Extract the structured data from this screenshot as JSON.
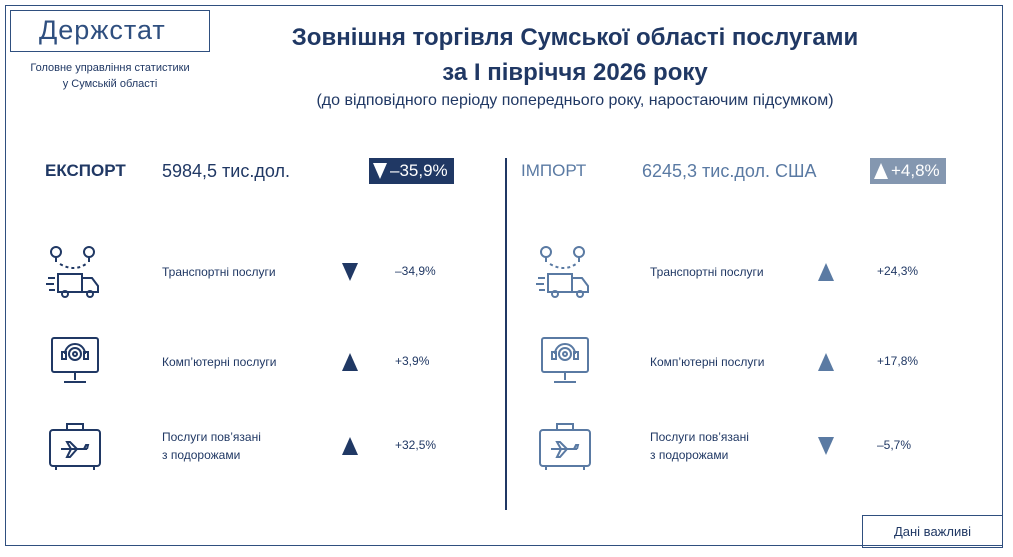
{
  "header": {
    "logo": "Держстат",
    "org_lines": [
      "Головне управління статистики",
      "у Сумській області"
    ],
    "title_lines": [
      "Зовнішня торгівля Сумської області послугами",
      "за І півріччя 2026 року"
    ],
    "subtitle": "(до відповідного періоду попереднього року, наростаючим підсумком)"
  },
  "panels": [
    {
      "label": "ЕКСПОРТ",
      "total": "5984,5 тис.дол.",
      "change": "–35,9%",
      "direction": "down",
      "items": [
        {
          "label_lines": [
            "Транспортні послуги"
          ],
          "change": "–34,9%",
          "direction": "down"
        },
        {
          "label_lines": [
            "Комп’ютерні послуги"
          ],
          "change": "+3,9%",
          "direction": "up"
        },
        {
          "label_lines": [
            "Послуги пов’язані",
            "з подорожами"
          ],
          "change": "+32,5%",
          "direction": "up"
        }
      ]
    },
    {
      "label": "ІМПОРТ",
      "total": "6245,3 тис.дол. США",
      "change": "+4,8%",
      "direction": "up",
      "items": [
        {
          "label_lines": [
            "Транспортні послуги"
          ],
          "change": "+24,3%",
          "direction": "up"
        },
        {
          "label_lines": [
            "Комп’ютерні послуги"
          ],
          "change": "+17,8%",
          "direction": "up"
        },
        {
          "label_lines": [
            "Послуги пов’язані",
            "з подорожами"
          ],
          "change": "–5,7%",
          "direction": "down"
        }
      ]
    }
  ],
  "footer": {
    "button": "Дані важливі"
  }
}
